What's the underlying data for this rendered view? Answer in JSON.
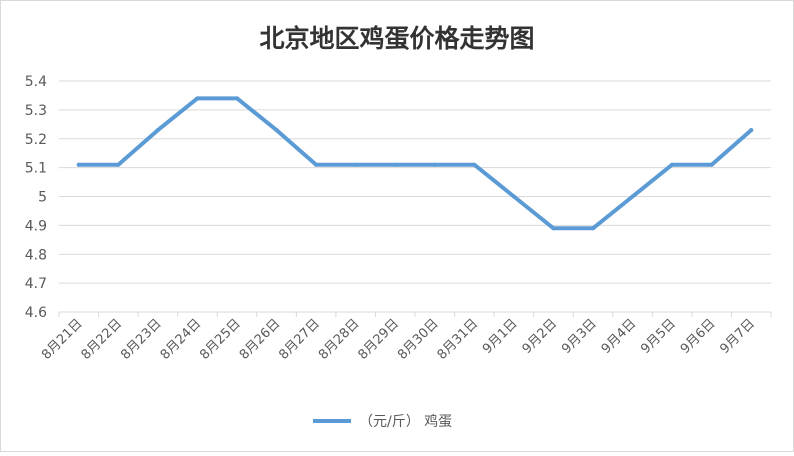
{
  "chart_data": {
    "type": "line",
    "title": "北京地区鸡蛋价格走势图",
    "categories": [
      "8月21日",
      "8月22日",
      "8月23日",
      "8月24日",
      "8月25日",
      "8月26日",
      "8月27日",
      "8月28日",
      "8月29日",
      "8月30日",
      "8月31日",
      "9月1日",
      "9月2日",
      "9月3日",
      "9月4日",
      "9月5日",
      "9月6日",
      "9月7日"
    ],
    "series": [
      {
        "name": "（元/斤） 鸡蛋",
        "color": "#5b9bd5",
        "values": [
          5.11,
          5.11,
          5.23,
          5.34,
          5.34,
          5.23,
          5.11,
          5.11,
          5.11,
          5.11,
          5.11,
          5.0,
          4.89,
          4.89,
          5.0,
          5.11,
          5.11,
          5.23
        ]
      }
    ],
    "yticks": [
      "4.6",
      "4.7",
      "4.8",
      "4.9",
      "5",
      "5.1",
      "5.2",
      "5.3",
      "5.4"
    ],
    "ylim": [
      4.6,
      5.4
    ],
    "grid": true,
    "legend_position": "bottom",
    "xlabel": "",
    "ylabel": ""
  }
}
